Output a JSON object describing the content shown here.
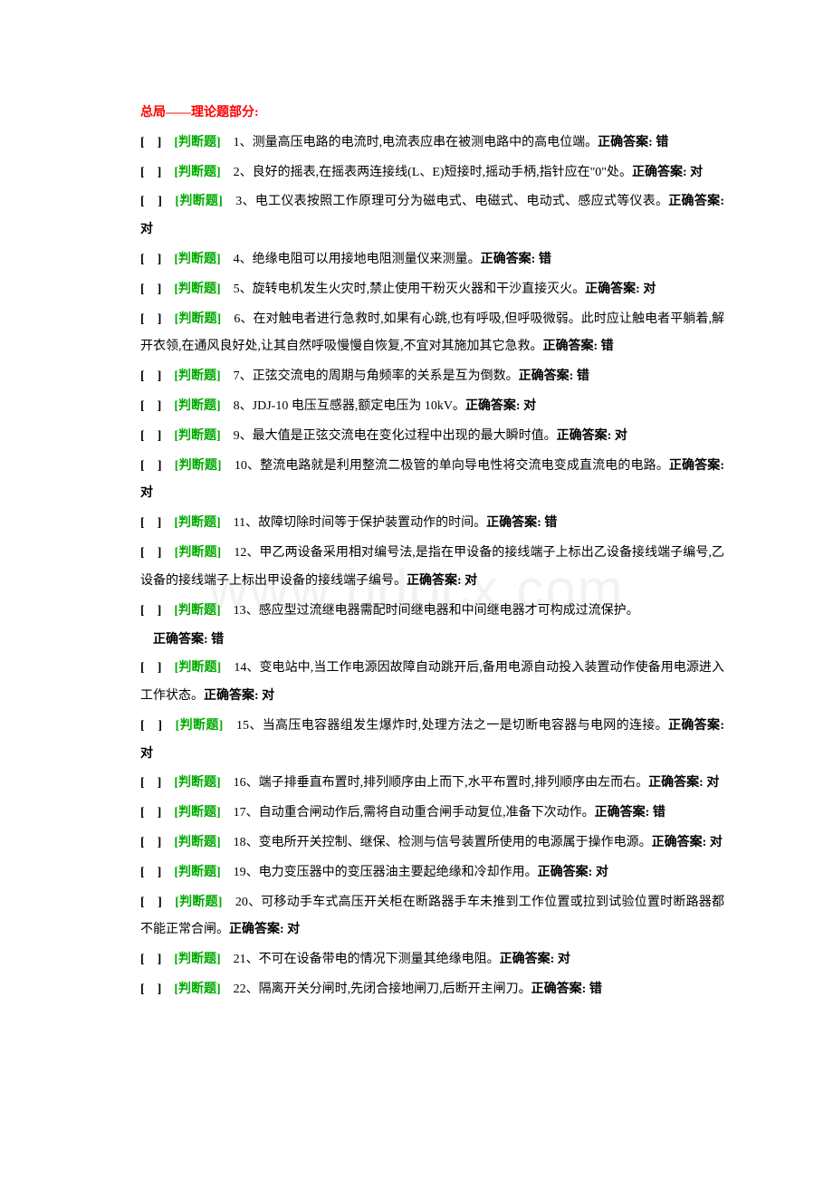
{
  "watermark": "www.bdocx.com",
  "header": "总局——理论题部分:",
  "bracket": "[　]",
  "tag": "[判断题]",
  "answerLabel": "正确答案:",
  "questions": [
    {
      "num": "1",
      "text": "、测量高压电路的电流时,电流表应串在被测电路中的高电位端。",
      "answer": "错"
    },
    {
      "num": "2",
      "text": "、良好的摇表,在摇表两连接线(L、E)短接时,摇动手柄,指针应在\"0\"处。",
      "answer": "对"
    },
    {
      "num": "3",
      "text": "、电工仪表按照工作原理可分为磁电式、电磁式、电动式、感应式等仪表。",
      "answer": "对"
    },
    {
      "num": "4",
      "text": "、绝缘电阻可以用接地电阻测量仪来测量。",
      "answer": "错"
    },
    {
      "num": "5",
      "text": "、旋转电机发生火灾时,禁止使用干粉灭火器和干沙直接灭火。",
      "answer": "对"
    },
    {
      "num": "6",
      "text": "、在对触电者进行急救时,如果有心跳,也有呼吸,但呼吸微弱。此时应让触电者平躺着,解开衣领,在通风良好处,让其自然呼吸慢慢自恢复,不宜对其施加其它急救。",
      "answer": "错"
    },
    {
      "num": "7",
      "text": "、正弦交流电的周期与角频率的关系是互为倒数。",
      "answer": "错"
    },
    {
      "num": "8",
      "text": "、JDJ-10 电压互感器,额定电压为 10kV。",
      "answer": "对"
    },
    {
      "num": "9",
      "text": "、最大值是正弦交流电在变化过程中出现的最大瞬时值。",
      "answer": "对"
    },
    {
      "num": "10",
      "text": "、整流电路就是利用整流二极管的单向导电性将交流电变成直流电的电路。",
      "answer": "对"
    },
    {
      "num": "11",
      "text": "、故障切除时间等于保护装置动作的时间。",
      "answer": "错"
    },
    {
      "num": "12",
      "text": "、甲乙两设备采用相对编号法,是指在甲设备的接线端子上标出乙设备接线端子编号,乙设备的接线端子上标出甲设备的接线端子编号。",
      "answer": "对"
    },
    {
      "num": "13",
      "text": "、感应型过流继电器需配时间继电器和中间继电器才可构成过流保护。",
      "answer": "错",
      "indentAnswer": true
    },
    {
      "num": "14",
      "text": "、变电站中,当工作电源因故障自动跳开后,备用电源自动投入装置动作使备用电源进入工作状态。",
      "answer": "对"
    },
    {
      "num": "15",
      "text": "、当高压电容器组发生爆炸时,处理方法之一是切断电容器与电网的连接。",
      "answer": "对"
    },
    {
      "num": "16",
      "text": "、端子排垂直布置时,排列顺序由上而下,水平布置时,排列顺序由左而右。",
      "answer": "对"
    },
    {
      "num": "17",
      "text": "、自动重合闸动作后,需将自动重合闸手动复位,准备下次动作。",
      "answer": "错"
    },
    {
      "num": "18",
      "text": "、变电所开关控制、继保、检测与信号装置所使用的电源属于操作电源。",
      "answer": "对"
    },
    {
      "num": "19",
      "text": "、电力变压器中的变压器油主要起绝缘和冷却作用。",
      "answer": "对"
    },
    {
      "num": "20",
      "text": "、可移动手车式高压开关柜在断路器手车未推到工作位置或拉到试验位置时断路器都不能正常合闸。",
      "answer": "对"
    },
    {
      "num": "21",
      "text": "、不可在设备带电的情况下测量其绝缘电阻。",
      "answer": "对"
    },
    {
      "num": "22",
      "text": "、隔离开关分闸时,先闭合接地闸刀,后断开主闸刀。",
      "answer": "错"
    }
  ]
}
